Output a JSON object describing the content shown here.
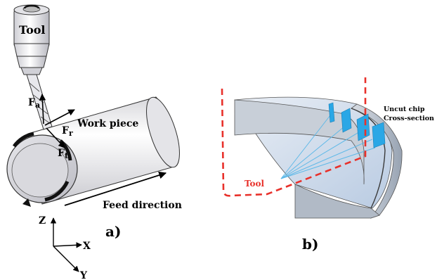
{
  "colors": {
    "tool_trajectory": "#e8312b",
    "chip_section": "#2aa7e6",
    "cutter_lines": "#5fb9e8",
    "workpiece_top": "#bfd3ea",
    "workpiece_wall": "#a9b6c6",
    "metal_light": "#f2f2f4",
    "metal_dark": "#9a9aa2"
  },
  "panel_a": {
    "label": "a)",
    "tool_label": "Tool",
    "workpiece_label": "Work piece",
    "feed_label": "Feed direction",
    "force_a_label": "F",
    "force_a_sub": "a",
    "force_r_label": "F",
    "force_r_sub": "r",
    "force_t_label": "F",
    "force_t_sub": "t",
    "axis_z": "Z",
    "axis_x": "X",
    "axis_y": "Y"
  },
  "panel_b": {
    "label": "b)",
    "tool_label": "Tool",
    "chip_label_line1": "Uncut chip",
    "chip_label_line2": "Cross-section"
  }
}
